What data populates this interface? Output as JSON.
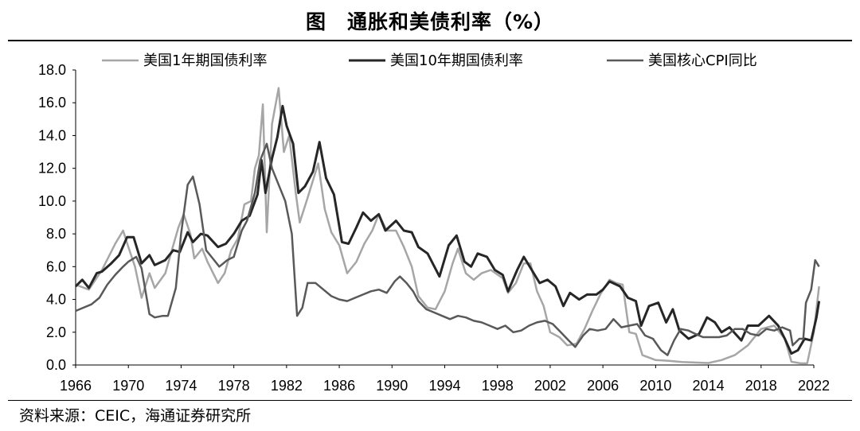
{
  "title": "图　通胀和美债利率（%）",
  "source": "资料来源：CEIC，海通证券研究所",
  "chart_data": {
    "type": "line",
    "ylim": [
      0,
      18
    ],
    "yticks": [
      "0.0",
      "2.0",
      "4.0",
      "6.0",
      "8.0",
      "10.0",
      "12.0",
      "14.0",
      "16.0",
      "18.0"
    ],
    "xlim": [
      1966,
      2022
    ],
    "xticks": [
      "1966",
      "1970",
      "1974",
      "1978",
      "1982",
      "1986",
      "1990",
      "1994",
      "1998",
      "2002",
      "2006",
      "2010",
      "2014",
      "2018",
      "2022"
    ],
    "legend_position": "top",
    "series": [
      {
        "name": "美国1年期国债利率",
        "color": "#a6a6a6",
        "points": [
          [
            1966,
            4.9
          ],
          [
            1967,
            4.6
          ],
          [
            1968,
            5.8
          ],
          [
            1969,
            7.4
          ],
          [
            1969.6,
            8.2
          ],
          [
            1970,
            7.2
          ],
          [
            1970.5,
            6.0
          ],
          [
            1971,
            4.1
          ],
          [
            1971.6,
            5.6
          ],
          [
            1972,
            4.7
          ],
          [
            1972.8,
            5.6
          ],
          [
            1973.3,
            7.0
          ],
          [
            1973.8,
            8.4
          ],
          [
            1974.2,
            9.2
          ],
          [
            1974.7,
            8.0
          ],
          [
            1975,
            6.5
          ],
          [
            1975.6,
            7.1
          ],
          [
            1976,
            6.3
          ],
          [
            1976.8,
            5.0
          ],
          [
            1977.3,
            5.6
          ],
          [
            1977.8,
            7.0
          ],
          [
            1978.3,
            7.7
          ],
          [
            1978.8,
            9.8
          ],
          [
            1979.3,
            10.0
          ],
          [
            1979.6,
            12.0
          ],
          [
            1979.9,
            12.8
          ],
          [
            1980.2,
            15.9
          ],
          [
            1980.5,
            8.1
          ],
          [
            1980.9,
            14.7
          ],
          [
            1981.4,
            16.9
          ],
          [
            1981.8,
            13.0
          ],
          [
            1982.2,
            14.0
          ],
          [
            1982.7,
            10.5
          ],
          [
            1983,
            8.7
          ],
          [
            1983.6,
            10.2
          ],
          [
            1984.4,
            12.3
          ],
          [
            1984.9,
            9.5
          ],
          [
            1985.4,
            8.1
          ],
          [
            1986,
            7.3
          ],
          [
            1986.6,
            5.6
          ],
          [
            1987.3,
            6.3
          ],
          [
            1987.9,
            7.4
          ],
          [
            1988.5,
            8.2
          ],
          [
            1989,
            9.2
          ],
          [
            1989.6,
            8.2
          ],
          [
            1990.3,
            8.2
          ],
          [
            1990.9,
            7.2
          ],
          [
            1991.5,
            6.0
          ],
          [
            1992,
            4.2
          ],
          [
            1992.7,
            3.5
          ],
          [
            1993.3,
            3.4
          ],
          [
            1994,
            4.5
          ],
          [
            1994.6,
            6.2
          ],
          [
            1995,
            7.1
          ],
          [
            1995.6,
            5.6
          ],
          [
            1996.2,
            5.2
          ],
          [
            1996.8,
            5.6
          ],
          [
            1997.5,
            5.8
          ],
          [
            1998.4,
            5.3
          ],
          [
            1998.8,
            4.4
          ],
          [
            1999.4,
            5.0
          ],
          [
            2000,
            6.2
          ],
          [
            2000.5,
            6.2
          ],
          [
            2001,
            4.5
          ],
          [
            2001.5,
            3.6
          ],
          [
            2002,
            2.0
          ],
          [
            2002.7,
            1.7
          ],
          [
            2003.3,
            1.2
          ],
          [
            2004,
            1.3
          ],
          [
            2004.6,
            2.2
          ],
          [
            2005.2,
            3.3
          ],
          [
            2005.8,
            4.3
          ],
          [
            2006.5,
            5.2
          ],
          [
            2007,
            5.0
          ],
          [
            2007.5,
            4.9
          ],
          [
            2008,
            2.0
          ],
          [
            2008.5,
            1.9
          ],
          [
            2009,
            0.6
          ],
          [
            2010,
            0.3
          ],
          [
            2011,
            0.25
          ],
          [
            2012,
            0.18
          ],
          [
            2013,
            0.15
          ],
          [
            2014,
            0.12
          ],
          [
            2015,
            0.3
          ],
          [
            2016,
            0.6
          ],
          [
            2017,
            1.2
          ],
          [
            2018,
            2.2
          ],
          [
            2019,
            2.4
          ],
          [
            2019.8,
            1.6
          ],
          [
            2020.3,
            0.2
          ],
          [
            2021,
            0.1
          ],
          [
            2021.5,
            0.1
          ],
          [
            2022,
            2.0
          ],
          [
            2022.4,
            4.8
          ]
        ]
      },
      {
        "name": "美国10年期国债利率",
        "color": "#262626",
        "points": [
          [
            1966,
            4.8
          ],
          [
            1966.5,
            5.2
          ],
          [
            1967,
            4.7
          ],
          [
            1967.6,
            5.6
          ],
          [
            1968,
            5.7
          ],
          [
            1968.7,
            6.2
          ],
          [
            1969.3,
            6.7
          ],
          [
            1969.9,
            7.8
          ],
          [
            1970.4,
            7.8
          ],
          [
            1971,
            6.2
          ],
          [
            1971.6,
            6.7
          ],
          [
            1972,
            6.1
          ],
          [
            1972.8,
            6.4
          ],
          [
            1973.4,
            7.0
          ],
          [
            1973.9,
            6.9
          ],
          [
            1974.5,
            8.1
          ],
          [
            1974.9,
            7.5
          ],
          [
            1975.5,
            8.0
          ],
          [
            1976,
            7.9
          ],
          [
            1976.8,
            7.2
          ],
          [
            1977.4,
            7.4
          ],
          [
            1978,
            8.0
          ],
          [
            1978.6,
            8.8
          ],
          [
            1979.2,
            9.1
          ],
          [
            1979.8,
            10.4
          ],
          [
            1980.1,
            12.5
          ],
          [
            1980.4,
            10.5
          ],
          [
            1980.9,
            12.6
          ],
          [
            1981.3,
            13.9
          ],
          [
            1981.7,
            15.8
          ],
          [
            1982,
            14.6
          ],
          [
            1982.5,
            13.5
          ],
          [
            1982.9,
            10.5
          ],
          [
            1983.4,
            10.9
          ],
          [
            1984,
            11.8
          ],
          [
            1984.5,
            13.6
          ],
          [
            1985,
            11.4
          ],
          [
            1985.6,
            10.4
          ],
          [
            1986.2,
            7.5
          ],
          [
            1986.7,
            7.4
          ],
          [
            1987.3,
            8.4
          ],
          [
            1987.8,
            9.3
          ],
          [
            1988.4,
            8.8
          ],
          [
            1989,
            9.2
          ],
          [
            1989.5,
            8.2
          ],
          [
            1990.3,
            8.8
          ],
          [
            1990.9,
            8.2
          ],
          [
            1991.5,
            8.1
          ],
          [
            1992,
            7.2
          ],
          [
            1992.7,
            6.8
          ],
          [
            1993.6,
            5.4
          ],
          [
            1994.3,
            7.3
          ],
          [
            1994.9,
            7.9
          ],
          [
            1995.5,
            6.3
          ],
          [
            1996,
            6.0
          ],
          [
            1996.5,
            6.8
          ],
          [
            1997.2,
            6.6
          ],
          [
            1997.8,
            5.8
          ],
          [
            1998.4,
            5.5
          ],
          [
            1998.8,
            4.5
          ],
          [
            1999.5,
            5.8
          ],
          [
            2000,
            6.6
          ],
          [
            2000.6,
            5.8
          ],
          [
            2001.2,
            5.0
          ],
          [
            2001.8,
            5.2
          ],
          [
            2002.4,
            4.8
          ],
          [
            2003,
            3.6
          ],
          [
            2003.5,
            4.4
          ],
          [
            2004.2,
            4.0
          ],
          [
            2004.8,
            4.3
          ],
          [
            2005.5,
            4.3
          ],
          [
            2006,
            4.6
          ],
          [
            2006.5,
            5.1
          ],
          [
            2007.3,
            4.8
          ],
          [
            2007.9,
            4.1
          ],
          [
            2008.5,
            3.9
          ],
          [
            2008.9,
            2.4
          ],
          [
            2009.5,
            3.6
          ],
          [
            2010.2,
            3.8
          ],
          [
            2010.8,
            2.6
          ],
          [
            2011.3,
            3.4
          ],
          [
            2011.8,
            2.1
          ],
          [
            2012.5,
            1.6
          ],
          [
            2013.3,
            1.9
          ],
          [
            2013.9,
            2.9
          ],
          [
            2014.5,
            2.6
          ],
          [
            2015,
            2.0
          ],
          [
            2015.6,
            2.3
          ],
          [
            2016.5,
            1.5
          ],
          [
            2017,
            2.4
          ],
          [
            2017.8,
            2.4
          ],
          [
            2018.6,
            3.0
          ],
          [
            2019.3,
            2.4
          ],
          [
            2019.8,
            1.6
          ],
          [
            2020.3,
            0.7
          ],
          [
            2020.8,
            0.9
          ],
          [
            2021.3,
            1.6
          ],
          [
            2021.8,
            1.5
          ],
          [
            2022.2,
            2.9
          ],
          [
            2022.4,
            3.9
          ]
        ]
      },
      {
        "name": "美国核心CPI同比",
        "color": "#595959",
        "points": [
          [
            1966,
            3.3
          ],
          [
            1966.6,
            3.5
          ],
          [
            1967.2,
            3.7
          ],
          [
            1967.8,
            4.1
          ],
          [
            1968.4,
            4.9
          ],
          [
            1969,
            5.5
          ],
          [
            1969.6,
            6.0
          ],
          [
            1970,
            6.3
          ],
          [
            1970.6,
            6.6
          ],
          [
            1971,
            5.9
          ],
          [
            1971.6,
            3.1
          ],
          [
            1972,
            2.9
          ],
          [
            1972.6,
            3.0
          ],
          [
            1973,
            3.0
          ],
          [
            1973.6,
            4.7
          ],
          [
            1974,
            8.0
          ],
          [
            1974.5,
            11.0
          ],
          [
            1974.9,
            11.5
          ],
          [
            1975.4,
            9.8
          ],
          [
            1975.9,
            7.0
          ],
          [
            1976.4,
            6.5
          ],
          [
            1976.9,
            6.0
          ],
          [
            1977.5,
            6.4
          ],
          [
            1978,
            6.6
          ],
          [
            1978.6,
            8.2
          ],
          [
            1979,
            8.8
          ],
          [
            1979.6,
            10.5
          ],
          [
            1980,
            12.5
          ],
          [
            1980.5,
            13.5
          ],
          [
            1980.9,
            12.0
          ],
          [
            1981.4,
            11.0
          ],
          [
            1981.9,
            10.0
          ],
          [
            1982.4,
            8.0
          ],
          [
            1982.8,
            3.0
          ],
          [
            1983.2,
            3.5
          ],
          [
            1983.6,
            5.0
          ],
          [
            1984.2,
            5.0
          ],
          [
            1984.8,
            4.6
          ],
          [
            1985.4,
            4.2
          ],
          [
            1986,
            4.0
          ],
          [
            1986.6,
            3.9
          ],
          [
            1987.2,
            4.1
          ],
          [
            1987.8,
            4.3
          ],
          [
            1988.4,
            4.5
          ],
          [
            1989,
            4.6
          ],
          [
            1989.6,
            4.4
          ],
          [
            1990.2,
            5.1
          ],
          [
            1990.6,
            5.4
          ],
          [
            1991.1,
            5.0
          ],
          [
            1991.6,
            4.5
          ],
          [
            1992,
            3.9
          ],
          [
            1992.6,
            3.4
          ],
          [
            1993.2,
            3.2
          ],
          [
            1993.8,
            3.0
          ],
          [
            1994.4,
            2.8
          ],
          [
            1995,
            3.0
          ],
          [
            1995.6,
            2.9
          ],
          [
            1996.2,
            2.7
          ],
          [
            1996.8,
            2.6
          ],
          [
            1997.4,
            2.4
          ],
          [
            1998,
            2.2
          ],
          [
            1998.6,
            2.4
          ],
          [
            1999.2,
            2.0
          ],
          [
            1999.8,
            2.1
          ],
          [
            2000.4,
            2.4
          ],
          [
            2001,
            2.6
          ],
          [
            2001.6,
            2.7
          ],
          [
            2002.2,
            2.5
          ],
          [
            2002.8,
            2.0
          ],
          [
            2003.4,
            1.5
          ],
          [
            2003.9,
            1.1
          ],
          [
            2004.5,
            1.8
          ],
          [
            2005,
            2.2
          ],
          [
            2005.6,
            2.1
          ],
          [
            2006.2,
            2.2
          ],
          [
            2006.8,
            2.8
          ],
          [
            2007.4,
            2.3
          ],
          [
            2008,
            2.4
          ],
          [
            2008.6,
            2.5
          ],
          [
            2009.2,
            1.8
          ],
          [
            2009.8,
            1.6
          ],
          [
            2010.4,
            0.9
          ],
          [
            2010.9,
            0.6
          ],
          [
            2011.4,
            1.5
          ],
          [
            2011.9,
            2.2
          ],
          [
            2012.5,
            2.1
          ],
          [
            2013,
            1.9
          ],
          [
            2013.6,
            1.7
          ],
          [
            2014.2,
            1.7
          ],
          [
            2014.8,
            1.7
          ],
          [
            2015.4,
            1.8
          ],
          [
            2016,
            2.2
          ],
          [
            2016.6,
            2.2
          ],
          [
            2017.2,
            1.9
          ],
          [
            2017.8,
            1.8
          ],
          [
            2018.4,
            2.2
          ],
          [
            2019,
            2.1
          ],
          [
            2019.6,
            2.3
          ],
          [
            2020.2,
            2.1
          ],
          [
            2020.4,
            1.2
          ],
          [
            2020.9,
            1.6
          ],
          [
            2021.2,
            1.6
          ],
          [
            2021.4,
            3.8
          ],
          [
            2021.8,
            4.6
          ],
          [
            2022.1,
            6.4
          ],
          [
            2022.4,
            6.0
          ]
        ]
      }
    ]
  }
}
